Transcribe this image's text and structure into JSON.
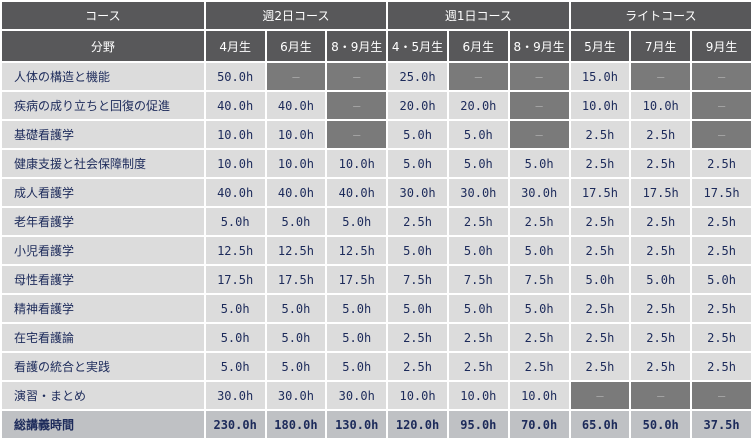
{
  "header": {
    "course_label": "コース",
    "groups": [
      "週2日コース",
      "週1日コース",
      "ライトコース"
    ],
    "field_label": "分野",
    "cohorts": [
      "4月生",
      "6月生",
      "8・9月生",
      "4・5月生",
      "6月生",
      "8・9月生",
      "5月生",
      "7月生",
      "9月生"
    ]
  },
  "rows": [
    {
      "subject": "人体の構造と機能",
      "values": [
        "50.0h",
        "―",
        "―",
        "25.0h",
        "―",
        "―",
        "15.0h",
        "―",
        "―"
      ]
    },
    {
      "subject": "疾病の成り立ちと回復の促進",
      "values": [
        "40.0h",
        "40.0h",
        "―",
        "20.0h",
        "20.0h",
        "―",
        "10.0h",
        "10.0h",
        "―"
      ]
    },
    {
      "subject": "基礎看護学",
      "values": [
        "10.0h",
        "10.0h",
        "―",
        "5.0h",
        "5.0h",
        "―",
        "2.5h",
        "2.5h",
        "―"
      ]
    },
    {
      "subject": "健康支援と社会保障制度",
      "values": [
        "10.0h",
        "10.0h",
        "10.0h",
        "5.0h",
        "5.0h",
        "5.0h",
        "2.5h",
        "2.5h",
        "2.5h"
      ]
    },
    {
      "subject": "成人看護学",
      "values": [
        "40.0h",
        "40.0h",
        "40.0h",
        "30.0h",
        "30.0h",
        "30.0h",
        "17.5h",
        "17.5h",
        "17.5h"
      ]
    },
    {
      "subject": "老年看護学",
      "values": [
        "5.0h",
        "5.0h",
        "5.0h",
        "2.5h",
        "2.5h",
        "2.5h",
        "2.5h",
        "2.5h",
        "2.5h"
      ]
    },
    {
      "subject": "小児看護学",
      "values": [
        "12.5h",
        "12.5h",
        "12.5h",
        "5.0h",
        "5.0h",
        "5.0h",
        "2.5h",
        "2.5h",
        "2.5h"
      ]
    },
    {
      "subject": "母性看護学",
      "values": [
        "17.5h",
        "17.5h",
        "17.5h",
        "7.5h",
        "7.5h",
        "7.5h",
        "5.0h",
        "5.0h",
        "5.0h"
      ]
    },
    {
      "subject": "精神看護学",
      "values": [
        "5.0h",
        "5.0h",
        "5.0h",
        "5.0h",
        "5.0h",
        "5.0h",
        "2.5h",
        "2.5h",
        "2.5h"
      ]
    },
    {
      "subject": "在宅看護論",
      "values": [
        "5.0h",
        "5.0h",
        "5.0h",
        "2.5h",
        "2.5h",
        "2.5h",
        "2.5h",
        "2.5h",
        "2.5h"
      ]
    },
    {
      "subject": "看護の統合と実践",
      "values": [
        "5.0h",
        "5.0h",
        "5.0h",
        "2.5h",
        "2.5h",
        "2.5h",
        "2.5h",
        "2.5h",
        "2.5h"
      ]
    },
    {
      "subject": "演習・まとめ",
      "values": [
        "30.0h",
        "30.0h",
        "30.0h",
        "10.0h",
        "10.0h",
        "10.0h",
        "―",
        "―",
        "―"
      ]
    },
    {
      "subject": "総講義時間",
      "values": [
        "230.0h",
        "180.0h",
        "130.0h",
        "120.0h",
        "95.0h",
        "70.0h",
        "65.0h",
        "50.0h",
        "37.5h"
      ],
      "total": true
    }
  ],
  "colors": {
    "header_bg": "#58585a",
    "cell_bg": "#dcdcdc",
    "na_bg": "#7a7a7a",
    "total_bg": "#bfc1c4",
    "text": "#1c2a5a"
  }
}
